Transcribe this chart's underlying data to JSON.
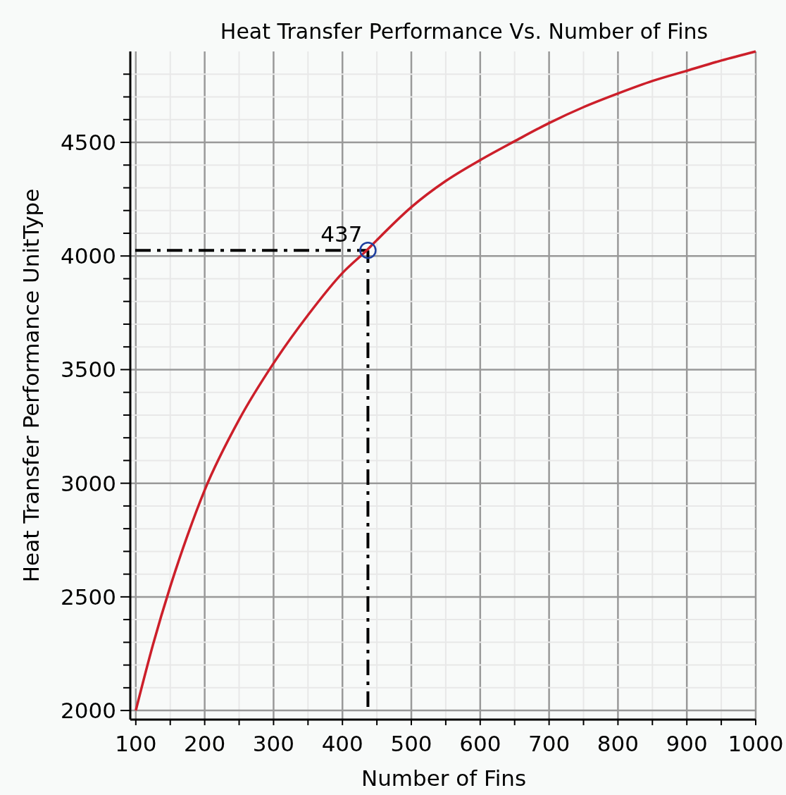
{
  "chart_data": {
    "type": "line",
    "title": "Heat Transfer Performance Vs. Number of Fins",
    "xlabel": "Number of Fins",
    "ylabel": "Heat Transfer Performance UnitType",
    "series": [
      {
        "color": "#cc1f2a",
        "marker": "none",
        "x": [
          100,
          125,
          150,
          175,
          200,
          250,
          300,
          350,
          400,
          437,
          450,
          500,
          550,
          600,
          650,
          700,
          750,
          800,
          850,
          900,
          950,
          1000
        ],
        "values": [
          2000,
          2290,
          2545,
          2770,
          2970,
          3280,
          3528,
          3740,
          3925,
          4030,
          4070,
          4215,
          4330,
          4422,
          4505,
          4585,
          4655,
          4715,
          4770,
          4815,
          4860,
          4900
        ]
      },
      {
        "type": "scatter",
        "color": "#1f3f9f",
        "marker": "circle",
        "x": [
          437
        ],
        "values": [
          4025
        ]
      }
    ],
    "xlim": [
      92,
      1000
    ],
    "xticks": [
      100,
      {
        "value": 150,
        "label": null
      },
      200,
      {
        "value": 250,
        "label": null
      },
      300,
      {
        "value": 350,
        "label": null
      },
      400,
      {
        "value": 450,
        "label": null
      },
      500,
      {
        "value": 550,
        "label": null
      },
      600,
      {
        "value": 650,
        "label": null
      },
      700,
      {
        "value": 750,
        "label": null
      },
      800,
      {
        "value": 850,
        "label": null
      },
      900,
      {
        "value": 950,
        "label": null
      },
      1000
    ],
    "ylim": [
      1960,
      4900
    ],
    "yticks": [
      2000,
      {
        "value": 2100,
        "label": null
      },
      {
        "value": 2200,
        "label": null
      },
      {
        "value": 2300,
        "label": null
      },
      {
        "value": 2400,
        "label": null
      },
      2500,
      {
        "value": 2600,
        "label": null
      },
      {
        "value": 2700,
        "label": null
      },
      {
        "value": 2800,
        "label": null
      },
      {
        "value": 2900,
        "label": null
      },
      3000,
      {
        "value": 3100,
        "label": null
      },
      {
        "value": 3200,
        "label": null
      },
      {
        "value": 3300,
        "label": null
      },
      {
        "value": 3400,
        "label": null
      },
      3500,
      {
        "value": 3600,
        "label": null
      },
      {
        "value": 3700,
        "label": null
      },
      {
        "value": 3800,
        "label": null
      },
      {
        "value": 3900,
        "label": null
      },
      4000,
      {
        "value": 4100,
        "label": null
      },
      {
        "value": 4200,
        "label": null
      },
      {
        "value": 4300,
        "label": null
      },
      {
        "value": 4400,
        "label": null
      },
      4500,
      {
        "value": 4600,
        "label": null
      },
      {
        "value": 4700,
        "label": null
      },
      {
        "value": 4800,
        "label": null
      }
    ],
    "grid": true,
    "ref_lines": [
      {
        "axis": "x",
        "value": 437,
        "color": "#000000",
        "line_style": "dashed"
      },
      {
        "axis": "y",
        "value": 4025,
        "color": "#000000",
        "line_style": "dashed"
      }
    ],
    "annotations": [
      {
        "text": "437",
        "x": 437,
        "y": 4025
      }
    ]
  }
}
